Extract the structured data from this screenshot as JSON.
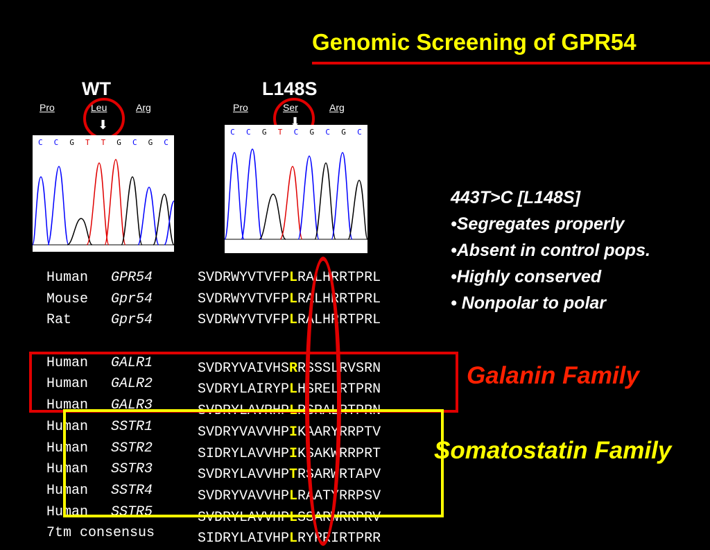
{
  "title": "Genomic Screening of GPR54",
  "wt": {
    "label": "WT",
    "codons": [
      "Pro",
      "Leu",
      "Arg"
    ],
    "bases": [
      "C",
      "C",
      "G",
      "T",
      "T",
      "G",
      "C",
      "G",
      "C"
    ],
    "base_colors": [
      "#0000ff",
      "#0000ff",
      "#000000",
      "#e00000",
      "#e00000",
      "#000000",
      "#0000ff",
      "#000000",
      "#0000ff"
    ]
  },
  "mut": {
    "label": "L148S",
    "codons": [
      "Pro",
      "Ser",
      "Arg"
    ],
    "bases": [
      "C",
      "C",
      "G",
      "T",
      "C",
      "G",
      "C",
      "G",
      "C"
    ],
    "base_colors": [
      "#0000ff",
      "#0000ff",
      "#000000",
      "#e00000",
      "#0000ff",
      "#000000",
      "#0000ff",
      "#000000",
      "#0000ff"
    ]
  },
  "notes": {
    "heading": "443T>C [L148S]",
    "bullets": [
      "•Segregates properly",
      "•Absent in control pops.",
      "•Highly conserved",
      "• Nonpolar to polar"
    ]
  },
  "alignment": [
    {
      "species": "Human",
      "gene": "GPR54",
      "pre": "SVDRWYVTVFP",
      "res": "L",
      "post": "RALHRRTPRL"
    },
    {
      "species": "Mouse",
      "gene": "Gpr54",
      "pre": "SVDRWYVTVFP",
      "res": "L",
      "post": "RALHRRTPRL"
    },
    {
      "species": "Rat",
      "gene": "Gpr54",
      "pre": "SVDRWYVTVFP",
      "res": "L",
      "post": "RALHRRTPRL"
    },
    {
      "species": "",
      "gene": "",
      "pre": "",
      "res": "",
      "post": ""
    },
    {
      "species": "Human",
      "gene": "GALR1",
      "pre": "SVDRYVAIVHS",
      "res": "R",
      "post": "RSSSLRVSRN"
    },
    {
      "species": "Human",
      "gene": "GALR2",
      "pre": "SVDRYLAIRYP",
      "res": "L",
      "post": "HSRELRTPRN"
    },
    {
      "species": "Human",
      "gene": "GALR3",
      "pre": "SVDRYLAVRHP",
      "res": "L",
      "post": "RSRALRTPRN"
    },
    {
      "species": "Human",
      "gene": "SSTR1",
      "pre": "SVDRYVAVVHP",
      "res": "I",
      "post": "KAARYRRPTV"
    },
    {
      "species": "Human",
      "gene": "SSTR2",
      "pre": "SIDRYLAVVHP",
      "res": "I",
      "post": "KSAKWRRPRT"
    },
    {
      "species": "Human",
      "gene": "SSTR3",
      "pre": "SVDRYLAVVHP",
      "res": "T",
      "post": "RSARWRTAPV"
    },
    {
      "species": "Human",
      "gene": "SSTR4",
      "pre": "SVDRYVAVVHP",
      "res": "L",
      "post": "RAATYRRPSV"
    },
    {
      "species": "Human",
      "gene": "SSTR5",
      "pre": "SVDRYLAVVHP",
      "res": "L",
      "post": "SSARWRRPRV"
    },
    {
      "species": "7tm consensus",
      "gene": "",
      "pre": "SIDRYLAIVHP",
      "res": "L",
      "post": "RYRRIRTPRR"
    }
  ],
  "families": {
    "galanin": "Galanin Family",
    "somatostatin": "Somatostatin Family"
  },
  "colors": {
    "title": "#ffff00",
    "accent_red": "#e00000",
    "highlight": "#ffff00",
    "trace_blue": "#0000ff",
    "trace_red": "#e00000"
  }
}
